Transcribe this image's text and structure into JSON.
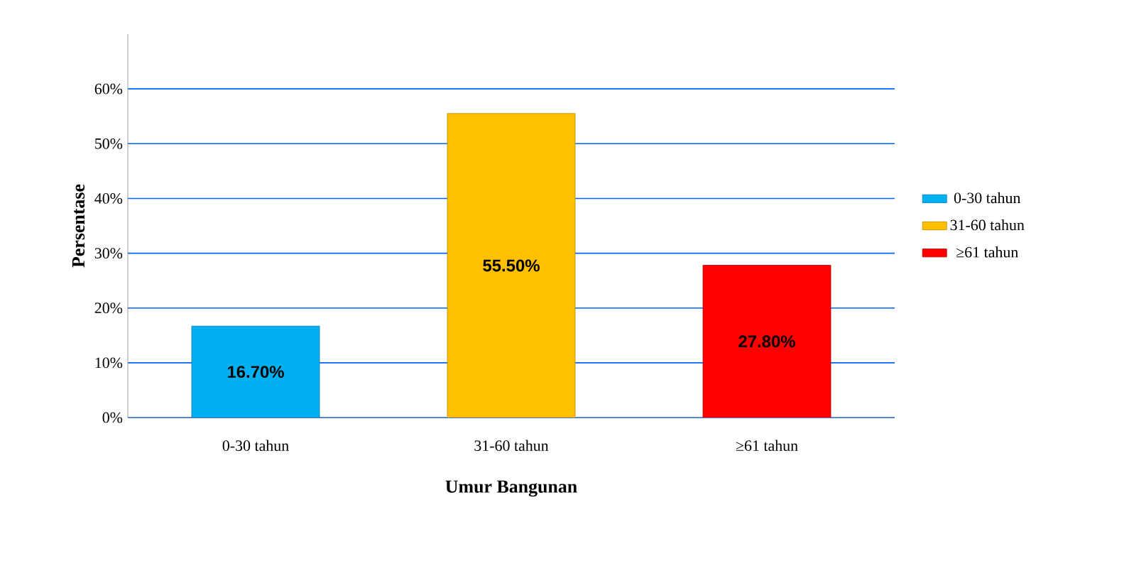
{
  "chart_data": {
    "type": "bar",
    "xlabel": "Umur Bangunan",
    "ylabel": "Persentase",
    "categories": [
      "0-30 tahun",
      "31-60 tahun",
      "≥61 tahun"
    ],
    "series": [
      {
        "name": "0-30 tahun",
        "color": "#00b0f0",
        "values": [
          16.7,
          null,
          null
        ],
        "value_labels": [
          "16.70%",
          null,
          null
        ]
      },
      {
        "name": "31-60 tahun",
        "color": "#ffc000",
        "values": [
          null,
          55.5,
          null
        ],
        "value_labels": [
          null,
          "55.50%",
          null
        ]
      },
      {
        "name": "≥61 tahun",
        "color": "#ff0000",
        "values": [
          null,
          null,
          27.8
        ],
        "value_labels": [
          null,
          null,
          "27.80%"
        ]
      }
    ],
    "ylim": [
      0,
      70
    ],
    "yticks": [
      {
        "value": 0,
        "label": "0%"
      },
      {
        "value": 10,
        "label": "10%"
      },
      {
        "value": 20,
        "label": "20%"
      },
      {
        "value": 30,
        "label": "30%"
      },
      {
        "value": 40,
        "label": "40%"
      },
      {
        "value": 50,
        "label": "50%"
      },
      {
        "value": 60,
        "label": "60%"
      }
    ],
    "grid": "y",
    "legend": "right"
  }
}
